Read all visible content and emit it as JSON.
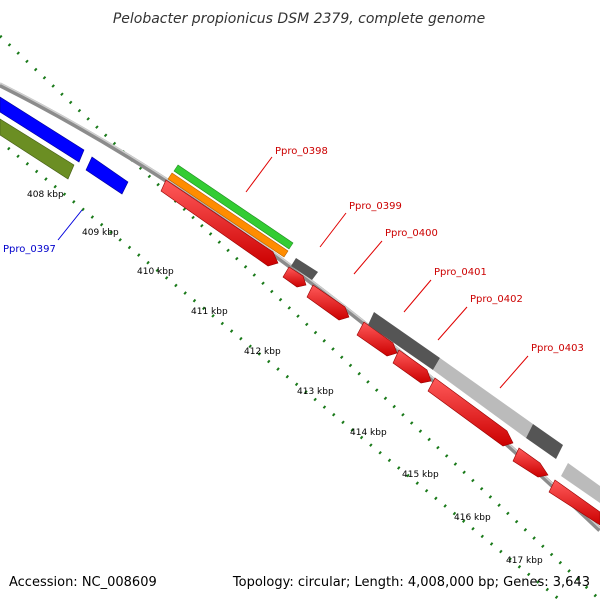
{
  "title": "Pelobacter propionicus DSM 2379, complete genome",
  "footer": {
    "accession": "Accession: NC_008609",
    "summary": "Topology: circular; Length: 4,008,000 bp; Genes: 3,643"
  },
  "colors": {
    "background": "#ffffff",
    "backbone": "#8c8c8c",
    "tick_dots": "#1a7a1a",
    "label_forward": "#cc0000",
    "label_reverse": "#0000cc",
    "label_line_forward": "#e00000",
    "label_line_reverse": "#0000dd"
  },
  "kbp_labels": [
    {
      "id": "kbp408",
      "text": "408 kbp"
    },
    {
      "id": "kbp409",
      "text": "409 kbp"
    },
    {
      "id": "kbp410",
      "text": "410 kbp"
    },
    {
      "id": "kbp411",
      "text": "411 kbp"
    },
    {
      "id": "kbp412",
      "text": "412 kbp"
    },
    {
      "id": "kbp413",
      "text": "413 kbp"
    },
    {
      "id": "kbp414",
      "text": "414 kbp"
    },
    {
      "id": "kbp415",
      "text": "415 kbp"
    },
    {
      "id": "kbp416",
      "text": "416 kbp"
    },
    {
      "id": "kbp417",
      "text": "417 kbp"
    }
  ],
  "gene_labels": [
    {
      "id": "ppro0397",
      "text": "Ppro_0397",
      "strand": "reverse"
    },
    {
      "id": "ppro0398",
      "text": "Ppro_0398",
      "strand": "forward"
    },
    {
      "id": "ppro0399",
      "text": "Ppro_0399",
      "strand": "forward"
    },
    {
      "id": "ppro0400",
      "text": "Ppro_0400",
      "strand": "forward"
    },
    {
      "id": "ppro0401",
      "text": "Ppro_0401",
      "strand": "forward"
    },
    {
      "id": "ppro0402",
      "text": "Ppro_0402",
      "strand": "forward"
    },
    {
      "id": "ppro0403",
      "text": "Ppro_0403",
      "strand": "forward"
    }
  ],
  "track_colors": {
    "cds_forward": "#ff0000",
    "cds_reverse": "#0000ff",
    "rna_or_feature_green": "#33cc33",
    "feature_orange": "#ff8c00",
    "feature_olive": "#6b8e23",
    "gc_dark": "#555555",
    "gc_light": "#bbbbbb"
  }
}
